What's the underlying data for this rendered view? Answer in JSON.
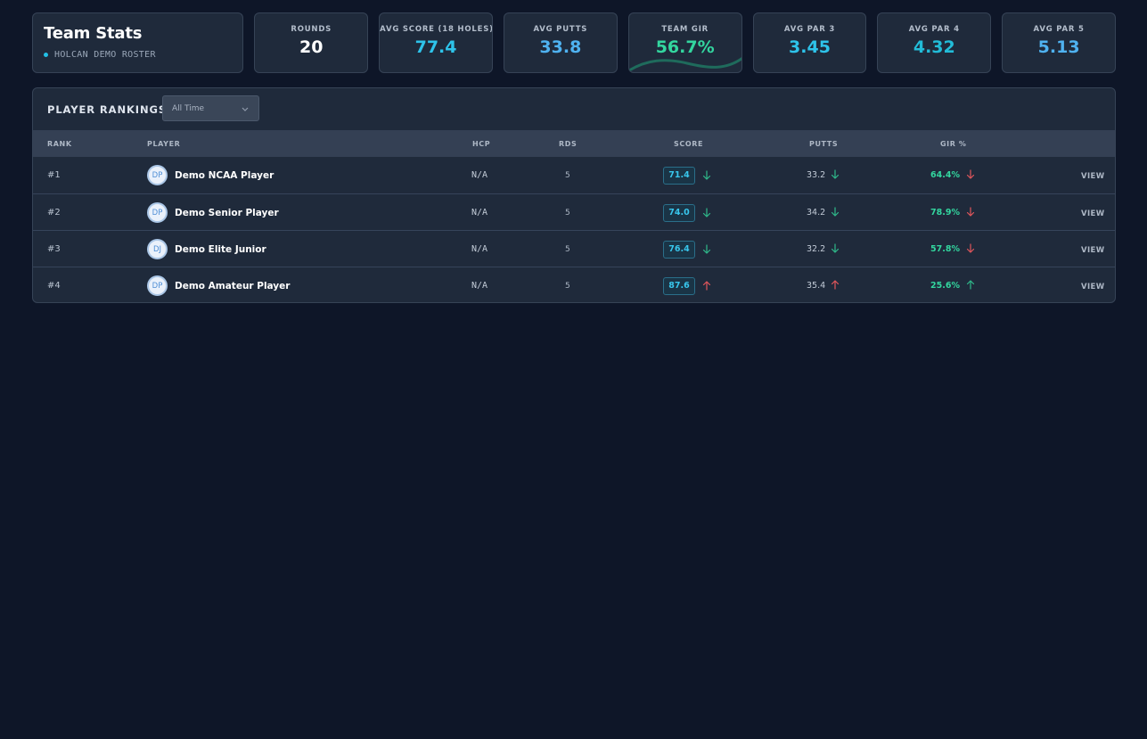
{
  "header": {
    "title": "Team Stats",
    "subtitle": "HOLCAN DEMO ROSTER"
  },
  "stats": [
    {
      "label": "ROUNDS",
      "value": "20",
      "color": "#ffffff"
    },
    {
      "label": "AVG SCORE (18 HOLES)",
      "value": "77.4",
      "color": "#2ec3ea"
    },
    {
      "label": "AVG PUTTS",
      "value": "33.8",
      "color": "#4fb2f0"
    },
    {
      "label": "TEAM GIR",
      "value": "56.7%",
      "color": "#33d69f"
    },
    {
      "label": "AVG PAR 3",
      "value": "3.45",
      "color": "#2ec3ea"
    },
    {
      "label": "AVG PAR 4",
      "value": "4.32",
      "color": "#22bcd8"
    },
    {
      "label": "AVG PAR 5",
      "value": "5.13",
      "color": "#4fb2f0"
    }
  ],
  "rankings": {
    "title": "PLAYER RANKINGS",
    "filter": {
      "selected": "All Time"
    },
    "columns": {
      "rank": "RANK",
      "player": "PLAYER",
      "hcp": "HCP",
      "rds": "RDS",
      "score": "SCORE",
      "putts": "PUTTS",
      "gir": "GIR %"
    },
    "view_label": "VIEW",
    "rows": [
      {
        "rank": "#1",
        "initials": "DP",
        "name": "Demo NCAA Player",
        "hcp": "N/A",
        "rds": "5",
        "score": "71.4",
        "score_trend": "down-green",
        "putts": "33.2",
        "putts_trend": "down-green",
        "gir": "64.4%",
        "gir_trend": "down-red"
      },
      {
        "rank": "#2",
        "initials": "DP",
        "name": "Demo Senior Player",
        "hcp": "N/A",
        "rds": "5",
        "score": "74.0",
        "score_trend": "down-green",
        "putts": "34.2",
        "putts_trend": "down-green",
        "gir": "78.9%",
        "gir_trend": "down-red"
      },
      {
        "rank": "#3",
        "initials": "DJ",
        "name": "Demo Elite Junior",
        "hcp": "N/A",
        "rds": "5",
        "score": "76.4",
        "score_trend": "down-green",
        "putts": "32.2",
        "putts_trend": "down-green",
        "gir": "57.8%",
        "gir_trend": "down-red"
      },
      {
        "rank": "#4",
        "initials": "DP",
        "name": "Demo Amateur Player",
        "hcp": "N/A",
        "rds": "5",
        "score": "87.6",
        "score_trend": "up-red",
        "putts": "35.4",
        "putts_trend": "up-red",
        "gir": "25.6%",
        "gir_trend": "up-green"
      }
    ]
  },
  "colors": {
    "background": "#0e1628",
    "card": "#1f2a3b",
    "accent": "#2ec3ea",
    "positive": "#33d69f",
    "negative": "#e0565b"
  }
}
